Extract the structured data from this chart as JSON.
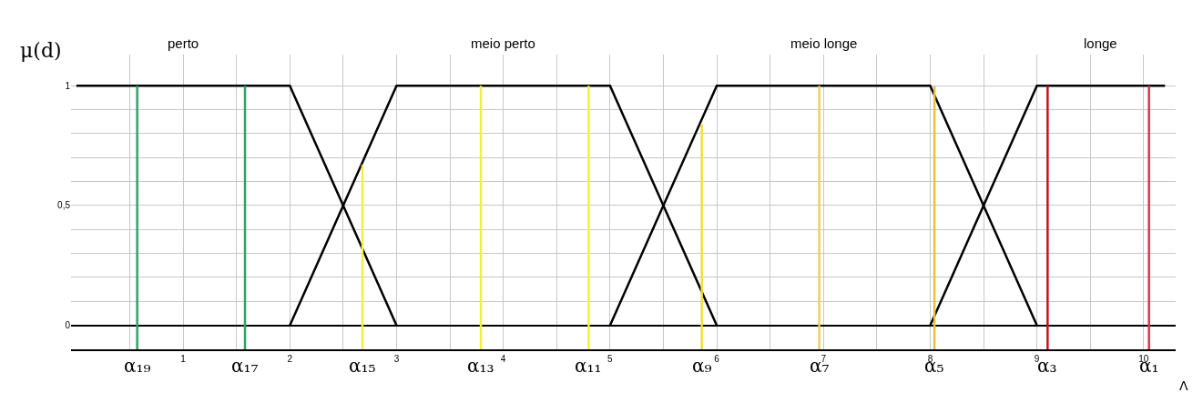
{
  "chart_data": {
    "type": "line",
    "ylabel": "μ(d)",
    "xlabel": "Λ",
    "xlim": [
      -0.05,
      10.3
    ],
    "ylim": [
      -0.1,
      1.13
    ],
    "xticks": [
      {
        "value": 0.5,
        "label": null
      },
      1,
      {
        "value": 1.5,
        "label": null
      },
      2,
      {
        "value": 2.5,
        "label": null
      },
      3,
      {
        "value": 3.5,
        "label": null
      },
      4,
      {
        "value": 4.5,
        "label": null
      },
      5,
      {
        "value": 5.5,
        "label": null
      },
      6,
      {
        "value": 6.5,
        "label": null
      },
      7,
      {
        "value": 7.5,
        "label": null
      },
      8,
      {
        "value": 8.5,
        "label": null
      },
      9,
      {
        "value": 9.5,
        "label": null
      },
      10
    ],
    "yticks": [
      0,
      {
        "value": 0.1,
        "label": null
      },
      {
        "value": 0.2,
        "label": null
      },
      {
        "value": 0.3,
        "label": null
      },
      {
        "value": 0.4,
        "label": null
      },
      {
        "value": 0.5,
        "label": "0,5"
      },
      {
        "value": 0.6,
        "label": null
      },
      {
        "value": 0.7,
        "label": null
      },
      {
        "value": 0.8,
        "label": null
      },
      {
        "value": 0.9,
        "label": null
      },
      1
    ],
    "grid": true,
    "legend": false,
    "marker": "none",
    "line_style": "solid",
    "series": [
      {
        "name": "perto",
        "color": "#000000",
        "x": [
          0,
          2,
          3
        ],
        "values": [
          1,
          1,
          0
        ]
      },
      {
        "name": "meio perto",
        "color": "#000000",
        "x": [
          2,
          3,
          5,
          6
        ],
        "values": [
          0,
          1,
          1,
          0
        ]
      },
      {
        "name": "meio longe",
        "color": "#000000",
        "x": [
          5,
          6,
          8,
          9
        ],
        "values": [
          0,
          1,
          1,
          0
        ]
      },
      {
        "name": "longe",
        "color": "#000000",
        "x": [
          8,
          9,
          10.2
        ],
        "values": [
          0,
          1,
          1
        ]
      },
      {
        "name": "α₁₉",
        "color": "#2ea36a",
        "x": [
          0.57,
          0.57
        ],
        "values": [
          -0.1,
          1
        ]
      },
      {
        "name": "α₁₇",
        "color": "#2ea36a",
        "x": [
          1.58,
          1.58
        ],
        "values": [
          -0.1,
          1
        ]
      },
      {
        "name": "α₁₅",
        "color": "#f2f03c",
        "x": [
          2.68,
          2.68
        ],
        "values": [
          -0.1,
          0.67
        ]
      },
      {
        "name": "α₁₃",
        "color": "#f2f03c",
        "x": [
          3.79,
          3.79
        ],
        "values": [
          -0.1,
          1
        ]
      },
      {
        "name": "α₁₁",
        "color": "#f2f03c",
        "x": [
          4.8,
          4.8
        ],
        "values": [
          -0.1,
          1
        ]
      },
      {
        "name": "α₉",
        "color": "#f0e030",
        "x": [
          5.86,
          5.86
        ],
        "values": [
          -0.1,
          0.84
        ]
      },
      {
        "name": "α₇",
        "color": "#eccf5a",
        "x": [
          6.96,
          6.96
        ],
        "values": [
          -0.1,
          1
        ]
      },
      {
        "name": "α₅",
        "color": "#e8c040",
        "x": [
          8.04,
          8.04
        ],
        "values": [
          -0.1,
          1
        ]
      },
      {
        "name": "α₃",
        "color": "#cc1111",
        "x": [
          9.1,
          9.1
        ],
        "values": [
          -0.1,
          1
        ]
      },
      {
        "name": "α₁",
        "color": "#d8374a",
        "x": [
          10.05,
          10.05
        ],
        "values": [
          -0.1,
          1
        ]
      }
    ]
  }
}
